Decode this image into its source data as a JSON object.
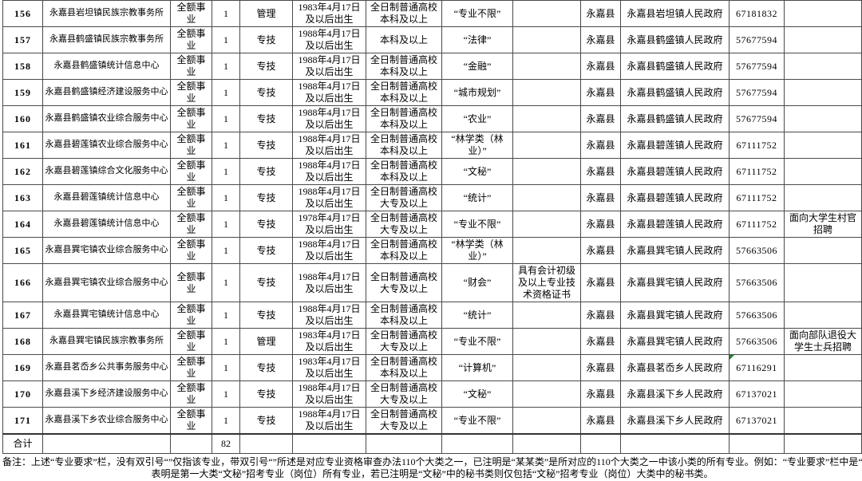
{
  "colors": {
    "grid": "#4a4a4a",
    "marker_green": "#2e7d32",
    "text": "#000000",
    "background": "#ffffff"
  },
  "table": {
    "rows": [
      {
        "num": "156",
        "unit": "永嘉县岩坦镇民族宗教事务所",
        "funding": "全额事业",
        "count": "1",
        "category": "管理",
        "birth": "1983年4月17日及以后出生",
        "education": "全日制普通高校本科及以上",
        "major": "“专业不限”",
        "other": "",
        "county": "永嘉县",
        "government": "永嘉县岩坦镇人民政府",
        "phone": "67181832",
        "note": "",
        "marker": false
      },
      {
        "num": "157",
        "unit": "永嘉县鹤盛镇民族宗教事务所",
        "funding": "全额事业",
        "count": "1",
        "category": "专技",
        "birth": "1988年4月17日及以后出生",
        "education": "本科及以上",
        "major": "“法律”",
        "other": "",
        "county": "永嘉县",
        "government": "永嘉县鹤盛镇人民政府",
        "phone": "57677594",
        "note": "",
        "marker": false
      },
      {
        "num": "158",
        "unit": "永嘉县鹤盛镇统计信息中心",
        "funding": "全额事业",
        "count": "1",
        "category": "专技",
        "birth": "1988年4月17日及以后出生",
        "education": "全日制普通高校本科及以上",
        "major": "“金融”",
        "other": "",
        "county": "永嘉县",
        "government": "永嘉县鹤盛镇人民政府",
        "phone": "57677594",
        "note": "",
        "marker": false
      },
      {
        "num": "159",
        "unit": "永嘉县鹤盛镇经济建设服务中心",
        "funding": "全额事业",
        "count": "1",
        "category": "专技",
        "birth": "1988年4月17日及以后出生",
        "education": "全日制普通高校本科及以上",
        "major": "“城市规划”",
        "other": "",
        "county": "永嘉县",
        "government": "永嘉县鹤盛镇人民政府",
        "phone": "57677594",
        "note": "",
        "marker": false
      },
      {
        "num": "160",
        "unit": "永嘉县鹤盛镇农业综合服务中心",
        "funding": "全额事业",
        "count": "1",
        "category": "专技",
        "birth": "1988年4月17日及以后出生",
        "education": "全日制普通高校本科及以上",
        "major": "“农业”",
        "other": "",
        "county": "永嘉县",
        "government": "永嘉县鹤盛镇人民政府",
        "phone": "57677594",
        "note": "",
        "marker": false
      },
      {
        "num": "161",
        "unit": "永嘉县碧莲镇农业综合服务中心",
        "funding": "全额事业",
        "count": "1",
        "category": "专技",
        "birth": "1988年4月17日及以后出生",
        "education": "全日制普通高校本科及以上",
        "major": "“林学类（林业）”",
        "other": "",
        "county": "永嘉县",
        "government": "永嘉县碧莲镇人民政府",
        "phone": "67111752",
        "note": "",
        "marker": false
      },
      {
        "num": "162",
        "unit": "永嘉县碧莲镇综合文化服务中心",
        "funding": "全额事业",
        "count": "1",
        "category": "专技",
        "birth": "1988年4月17日及以后出生",
        "education": "全日制普通高校本科及以上",
        "major": "“文秘”",
        "other": "",
        "county": "永嘉县",
        "government": "永嘉县碧莲镇人民政府",
        "phone": "67111752",
        "note": "",
        "marker": false
      },
      {
        "num": "163",
        "unit": "永嘉县碧莲镇统计信息中心",
        "funding": "全额事业",
        "count": "1",
        "category": "专技",
        "birth": "1988年4月17日及以后出生",
        "education": "全日制普通高校大专及以上",
        "major": "“统计”",
        "other": "",
        "county": "永嘉县",
        "government": "永嘉县碧莲镇人民政府",
        "phone": "67111752",
        "note": "",
        "marker": false
      },
      {
        "num": "164",
        "unit": "永嘉县碧莲镇统计信息中心",
        "funding": "全额事业",
        "count": "1",
        "category": "专技",
        "birth": "1978年4月17日及以后出生",
        "education": "全日制普通高校大专及以上",
        "major": "“专业不限”",
        "other": "",
        "county": "永嘉县",
        "government": "永嘉县碧莲镇人民政府",
        "phone": "67111752",
        "note": "面向大学生村官招聘",
        "marker": false
      },
      {
        "num": "165",
        "unit": "永嘉县巽宅镇农业综合服务中心",
        "funding": "全额事业",
        "count": "1",
        "category": "专技",
        "birth": "1988年4月17日及以后出生",
        "education": "全日制普通高校本科及以上",
        "major": "“林学类（林业）”",
        "other": "",
        "county": "永嘉县",
        "government": "永嘉县巽宅镇人民政府",
        "phone": "57663506",
        "note": "",
        "marker": false
      },
      {
        "num": "166",
        "unit": "永嘉县巽宅镇农业综合服务中心",
        "funding": "全额事业",
        "count": "1",
        "category": "专技",
        "birth": "1988年4月17日及以后出生",
        "education": "全日制普通高校大专及以上",
        "major": "“财会”",
        "other": "具有会计初级及以上专业技术资格证书",
        "county": "永嘉县",
        "government": "永嘉县巽宅镇人民政府",
        "phone": "57663506",
        "note": "",
        "marker": false
      },
      {
        "num": "167",
        "unit": "永嘉县巽宅镇统计信息中心",
        "funding": "全额事业",
        "count": "1",
        "category": "专技",
        "birth": "1988年4月17日及以后出生",
        "education": "全日制普通高校本科及以上",
        "major": "“统计”",
        "other": "",
        "county": "永嘉县",
        "government": "永嘉县巽宅镇人民政府",
        "phone": "57663506",
        "note": "",
        "marker": false
      },
      {
        "num": "168",
        "unit": "永嘉县巽宅镇民族宗教事务所",
        "funding": "全额事业",
        "count": "1",
        "category": "管理",
        "birth": "1983年4月17日及以后出生",
        "education": "全日制普通高校大专及以上",
        "major": "“专业不限”",
        "other": "",
        "county": "永嘉县",
        "government": "永嘉县巽宅镇人民政府",
        "phone": "57663506",
        "note": "面向部队退役大学生士兵招聘",
        "marker": false
      },
      {
        "num": "169",
        "unit": "永嘉县茗岙乡公共事务服务中心",
        "funding": "全额事业",
        "count": "1",
        "category": "专技",
        "birth": "1983年4月17日及以后出生",
        "education": "全日制普通高校本科及以上",
        "major": "“计算机”",
        "other": "",
        "county": "永嘉县",
        "government": "永嘉县茗岙乡人民政府",
        "phone": "67116291",
        "note": "",
        "marker": true
      },
      {
        "num": "170",
        "unit": "永嘉县溪下乡经济建设服务中心",
        "funding": "全额事业",
        "count": "1",
        "category": "专技",
        "birth": "1988年4月17日及以后出生",
        "education": "全日制普通高校大专及以上",
        "major": "“文秘”",
        "other": "",
        "county": "永嘉县",
        "government": "永嘉县溪下乡人民政府",
        "phone": "67137021",
        "note": "",
        "marker": false
      },
      {
        "num": "171",
        "unit": "永嘉县溪下乡农业综合服务中心",
        "funding": "全额事业",
        "count": "1",
        "category": "专技",
        "birth": "1988年4月17日及以后出生",
        "education": "全日制普通高校大专及以上",
        "major": "“专业不限”",
        "other": "",
        "county": "永嘉县",
        "government": "永嘉县溪下乡人民政府",
        "phone": "67137021",
        "note": "",
        "marker": false
      }
    ],
    "total": {
      "label": "合计",
      "count": "82"
    }
  },
  "icons": {
    "error_marker": "green-triangle-cell-indicator"
  },
  "footnote": {
    "line1": "备注：上述“专业要求”栏，没有双引号“”仅指该专业，带双引号“”所述是对应专业资格审查办法110个大类之一，已注明是“某某类”是所对应的110个大类之一中该小类的所有专业。例如：“专业要求”栏中是“文秘”",
    "line2": "表明是第一大类“文秘”招考专业（岗位）所有专业，若已注明是“文秘”中的秘书类则仅包括“文秘”招考专业（岗位）大类中的秘书类。"
  }
}
